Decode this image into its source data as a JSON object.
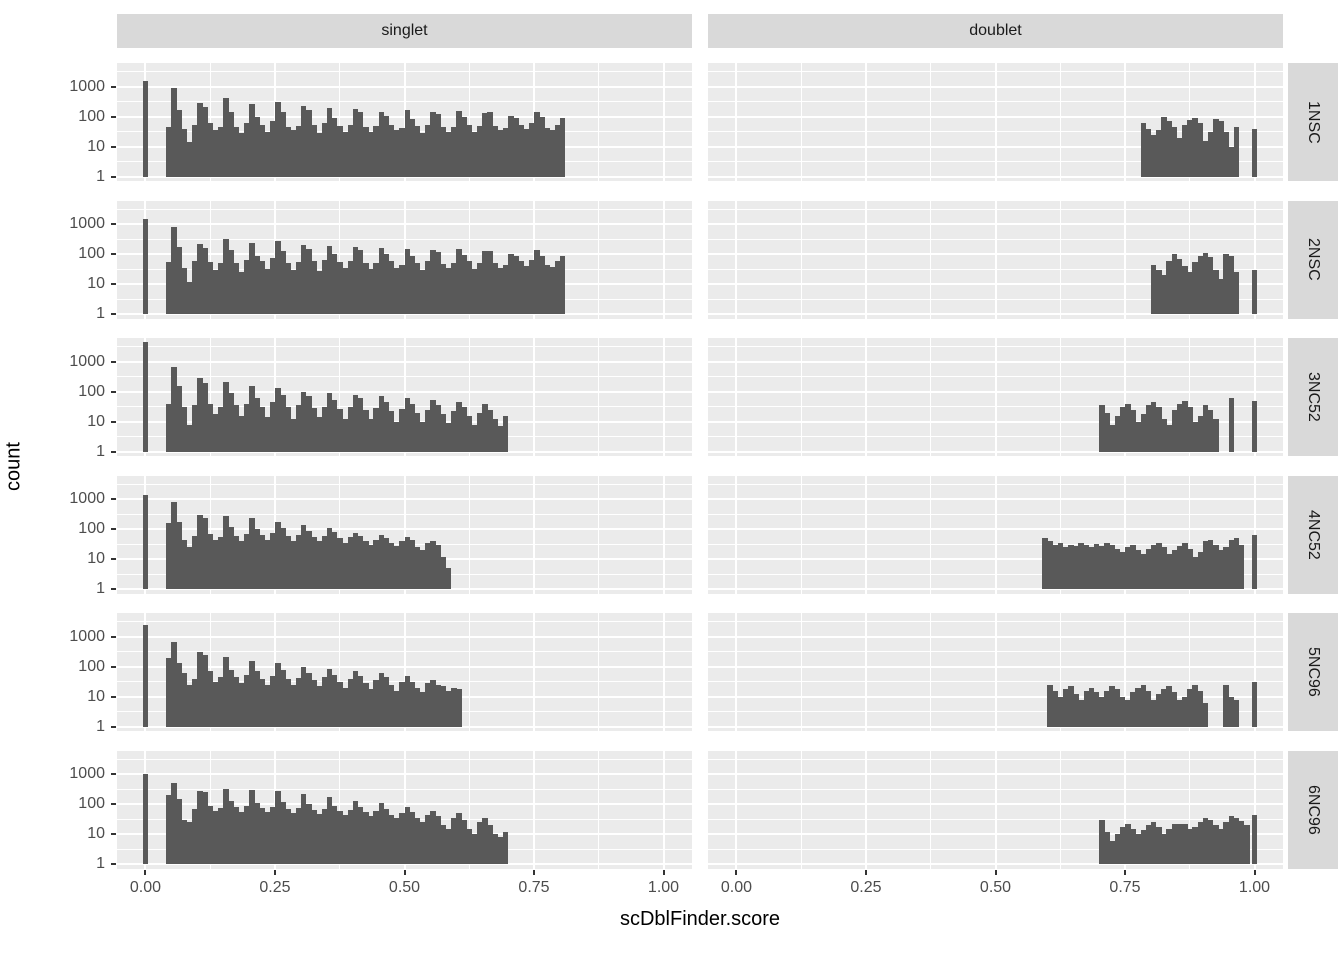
{
  "figure": {
    "y_title": "count",
    "x_title": "scDblFinder.score",
    "col_facets": [
      "singlet",
      "doublet"
    ],
    "row_facets": [
      "1NSC",
      "2NSC",
      "3NC52",
      "4NC52",
      "5NC96",
      "6NC96"
    ],
    "colors": {
      "bar": "#595959",
      "panel_bg": "#ebebeb",
      "strip_bg": "#d9d9d9",
      "gridline": "#ffffff",
      "axis_text": "#4d4d4d",
      "title_text": "#000000"
    }
  },
  "chart_data": {
    "type": "bar",
    "subtype": "faceted-log-histogram",
    "title": "",
    "xlabel": "scDblFinder.score",
    "ylabel": "count",
    "x_ticks": [
      {
        "v": 0,
        "label": "0.00"
      },
      {
        "v": 0.25,
        "label": "0.25"
      },
      {
        "v": 0.5,
        "label": "0.50"
      },
      {
        "v": 0.75,
        "label": "0.75"
      },
      {
        "v": 1.0,
        "label": "1.00"
      }
    ],
    "x_minor_ticks": [
      0.125,
      0.375,
      0.625,
      0.875
    ],
    "y_ticks": [
      {
        "v": 1,
        "label": "1"
      },
      {
        "v": 10,
        "label": "10"
      },
      {
        "v": 100,
        "label": "100"
      },
      {
        "v": 1000,
        "label": "1000"
      }
    ],
    "y_minor_ticks": [
      3.162,
      31.62,
      316.2,
      3162
    ],
    "y_scale": "log10",
    "xlim": [
      -0.055,
      1.055
    ],
    "ylim_log": [
      -0.15,
      3.8
    ],
    "bin_width": 0.01,
    "legend": "none",
    "grid": "on",
    "panels": [
      {
        "row": "1NSC",
        "col": "singlet",
        "spike": {
          "x": 0.0,
          "count": 1600
        },
        "start": 0.04,
        "counts": [
          45,
          900,
          170,
          40,
          14,
          55,
          300,
          220,
          60,
          35,
          45,
          420,
          150,
          45,
          28,
          60,
          270,
          95,
          55,
          30,
          70,
          310,
          140,
          45,
          35,
          50,
          230,
          170,
          55,
          28,
          60,
          200,
          90,
          50,
          32,
          55,
          180,
          150,
          45,
          30,
          48,
          150,
          110,
          55,
          35,
          42,
          170,
          85,
          50,
          28,
          55,
          140,
          120,
          45,
          32,
          46,
          160,
          100,
          55,
          30,
          50,
          130,
          140,
          48,
          35,
          42,
          110,
          90,
          55,
          38,
          60,
          150,
          95,
          42,
          35,
          55,
          90
        ]
      },
      {
        "row": "1NSC",
        "col": "doublet",
        "spike": {
          "x": 1.0,
          "count": 38
        },
        "start": 0.78,
        "counts": [
          60,
          40,
          25,
          35,
          100,
          70,
          45,
          20,
          55,
          80,
          90,
          60,
          15,
          30,
          85,
          75,
          30,
          10,
          45
        ]
      },
      {
        "row": "2NSC",
        "col": "singlet",
        "spike": {
          "x": 0.0,
          "count": 1500
        },
        "start": 0.04,
        "counts": [
          55,
          800,
          170,
          35,
          12,
          60,
          220,
          160,
          55,
          30,
          50,
          330,
          140,
          50,
          25,
          65,
          240,
          90,
          60,
          32,
          75,
          280,
          130,
          50,
          30,
          55,
          210,
          150,
          60,
          28,
          65,
          190,
          100,
          55,
          35,
          60,
          170,
          140,
          50,
          32,
          52,
          160,
          105,
          58,
          36,
          45,
          150,
          90,
          52,
          30,
          58,
          135,
          115,
          48,
          34,
          50,
          150,
          95,
          58,
          32,
          52,
          125,
          130,
          50,
          36,
          45,
          105,
          85,
          58,
          40,
          62,
          140,
          90,
          45,
          38,
          58,
          85
        ]
      },
      {
        "row": "2NSC",
        "col": "doublet",
        "spike": {
          "x": 1.0,
          "count": 30
        },
        "start": 0.8,
        "counts": [
          45,
          30,
          20,
          60,
          100,
          70,
          40,
          25,
          55,
          90,
          110,
          80,
          30,
          15,
          100,
          85,
          25
        ]
      },
      {
        "row": "3NC52",
        "col": "singlet",
        "spike": {
          "x": 0.0,
          "count": 4500
        },
        "start": 0.04,
        "counts": [
          40,
          700,
          160,
          30,
          8,
          35,
          280,
          200,
          40,
          18,
          30,
          220,
          90,
          35,
          15,
          40,
          160,
          60,
          30,
          14,
          45,
          130,
          80,
          30,
          12,
          35,
          100,
          70,
          28,
          14,
          30,
          90,
          55,
          26,
          12,
          32,
          80,
          60,
          24,
          12,
          28,
          70,
          45,
          22,
          10,
          26,
          60,
          40,
          20,
          10,
          24,
          55,
          35,
          18,
          9,
          22,
          45,
          30,
          16,
          8,
          20,
          40,
          25,
          12,
          7,
          15
        ]
      },
      {
        "row": "3NC52",
        "col": "doublet",
        "spike": {
          "x": 1.0,
          "count": 50
        },
        "start": 0.7,
        "counts": [
          35,
          20,
          8,
          15,
          30,
          40,
          25,
          10,
          18,
          35,
          45,
          30,
          12,
          8,
          25,
          40,
          50,
          30,
          10,
          15,
          35,
          25,
          12,
          0,
          0,
          60
        ]
      },
      {
        "row": "4NC52",
        "col": "singlet",
        "spike": {
          "x": 0.0,
          "count": 1400
        },
        "start": 0.04,
        "counts": [
          160,
          800,
          170,
          45,
          25,
          60,
          300,
          230,
          70,
          45,
          55,
          280,
          120,
          60,
          40,
          70,
          230,
          100,
          65,
          45,
          75,
          180,
          110,
          60,
          42,
          65,
          140,
          90,
          55,
          40,
          60,
          110,
          80,
          50,
          35,
          55,
          75,
          60,
          40,
          30,
          45,
          65,
          50,
          35,
          28,
          42,
          55,
          45,
          25,
          20,
          35,
          40,
          30,
          12,
          5
        ]
      },
      {
        "row": "4NC52",
        "col": "doublet",
        "spike": {
          "x": 1.0,
          "count": 65
        },
        "start": 0.59,
        "counts": [
          50,
          40,
          30,
          35,
          25,
          30,
          28,
          35,
          30,
          25,
          32,
          28,
          35,
          30,
          22,
          18,
          25,
          30,
          20,
          15,
          22,
          30,
          35,
          25,
          15,
          20,
          28,
          35,
          22,
          12,
          18,
          40,
          45,
          30,
          20,
          25,
          45,
          50,
          30
        ]
      },
      {
        "row": "5NC96",
        "col": "singlet",
        "spike": {
          "x": 0.0,
          "count": 2500
        },
        "start": 0.04,
        "counts": [
          200,
          700,
          130,
          60,
          25,
          40,
          320,
          240,
          70,
          30,
          45,
          220,
          80,
          45,
          28,
          55,
          160,
          70,
          40,
          25,
          50,
          130,
          80,
          38,
          24,
          42,
          100,
          60,
          35,
          22,
          45,
          85,
          55,
          30,
          20,
          40,
          70,
          50,
          28,
          18,
          35,
          60,
          45,
          25,
          16,
          30,
          50,
          30,
          20,
          14,
          28,
          35,
          25,
          22,
          16,
          20,
          18
        ]
      },
      {
        "row": "5NC96",
        "col": "doublet",
        "spike": {
          "x": 1.0,
          "count": 30
        },
        "start": 0.6,
        "counts": [
          25,
          15,
          10,
          18,
          22,
          12,
          8,
          15,
          20,
          14,
          10,
          16,
          22,
          18,
          10,
          8,
          14,
          20,
          25,
          15,
          8,
          12,
          18,
          22,
          14,
          8,
          10,
          18,
          25,
          15,
          6,
          0,
          0,
          0,
          25,
          10,
          8
        ]
      },
      {
        "row": "6NC96",
        "col": "singlet",
        "spike": {
          "x": 0.0,
          "count": 1000
        },
        "start": 0.04,
        "counts": [
          200,
          500,
          150,
          30,
          25,
          70,
          280,
          250,
          90,
          60,
          75,
          320,
          130,
          80,
          55,
          85,
          300,
          110,
          75,
          55,
          80,
          270,
          120,
          70,
          50,
          75,
          220,
          100,
          65,
          48,
          70,
          170,
          90,
          60,
          45,
          65,
          130,
          80,
          55,
          40,
          60,
          110,
          70,
          45,
          35,
          50,
          80,
          55,
          35,
          25,
          45,
          60,
          40,
          20,
          15,
          35,
          50,
          30,
          15,
          10,
          25,
          35,
          20,
          10,
          8,
          12
        ]
      },
      {
        "row": "6NC96",
        "col": "doublet",
        "spike": {
          "x": 1.0,
          "count": 45
        },
        "start": 0.7,
        "counts": [
          30,
          12,
          6,
          10,
          18,
          22,
          15,
          10,
          14,
          20,
          25,
          18,
          10,
          15,
          22,
          22,
          22,
          15,
          18,
          25,
          35,
          30,
          20,
          15,
          25,
          40,
          35,
          28,
          20
        ]
      }
    ]
  }
}
